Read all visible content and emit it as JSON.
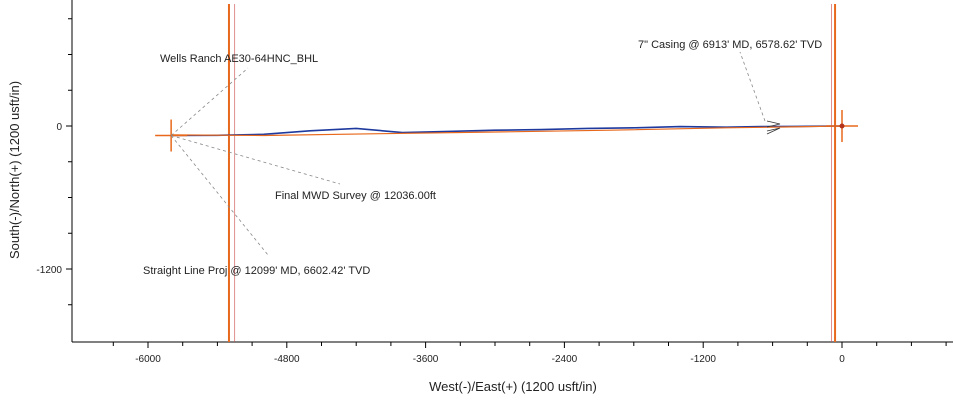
{
  "chart_data": {
    "type": "line",
    "title": "",
    "xlabel": "West(-)/East(+) (1200 usft/in)",
    "ylabel": "South(-)/North(+) (1200 usft/in)",
    "xlim": [
      -6300,
      900
    ],
    "ylim": [
      -1700,
      1050
    ],
    "x_ticks": [
      -6000,
      -4800,
      -3600,
      -2400,
      -1200,
      0
    ],
    "x_tick_labels": [
      "-6000",
      "-4800",
      "-3600",
      "-2400",
      "-1200",
      "0"
    ],
    "y_ticks": [
      0,
      -1200
    ],
    "y_tick_labels": [
      "0",
      "-1200"
    ],
    "colors": {
      "actual": "#1f3a9e",
      "plan": "#e8681c",
      "leader": "#888888"
    },
    "series": [
      {
        "x": [
          -5800,
          -5400,
          -5000,
          -4600,
          -4200,
          -3800,
          -3400,
          -3000,
          -2600,
          -2200,
          -1800,
          -1400,
          -1000,
          -700,
          -400,
          -200,
          0
        ],
        "y": [
          -80,
          -78,
          -70,
          -40,
          -20,
          -55,
          -45,
          -35,
          -30,
          -20,
          -15,
          -5,
          -10,
          -5,
          -3,
          -2,
          0
        ]
      },
      {
        "x": [
          -5800,
          -5000,
          -4000,
          -3000,
          -2000,
          -1000,
          -500,
          0
        ],
        "y": [
          -75,
          -80,
          -65,
          -50,
          -35,
          -15,
          -8,
          0
        ]
      }
    ],
    "lease_lines_x": [
      -5300,
      -60
    ],
    "hardlines_x": [
      -5250,
      -90
    ],
    "markers": [
      {
        "x": -5800,
        "y": -80
      },
      {
        "x": 0,
        "y": 0
      }
    ],
    "annotations": [
      {
        "text": "Wells Ranch AE30-64HNC_BHL",
        "point": [
          -5800,
          -80
        ]
      },
      {
        "text": "7\" Casing @ 6913' MD, 6578.62' TVD",
        "point": [
          -600,
          -20
        ]
      },
      {
        "text": "Final MWD Survey @ 12036.00ft",
        "point": [
          -5800,
          -80
        ]
      },
      {
        "text": "Straight Line Proj @ 12099' MD, 6602.42' TVD",
        "point": [
          -5800,
          -80
        ]
      }
    ]
  }
}
